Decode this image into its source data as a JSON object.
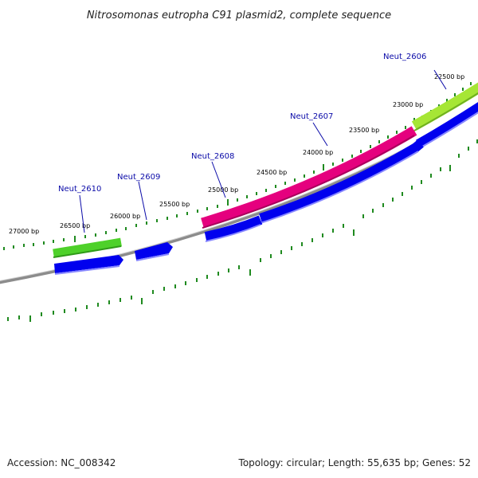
{
  "title": "Nitrosomonas eutropha C91 plasmid2, complete sequence",
  "footer": {
    "accession": "Accession: NC_008342",
    "summary": "Topology: circular; Length: 55,635 bp; Genes: 52"
  },
  "ticks": [
    "22500 bp",
    "23000 bp",
    "23500 bp",
    "24000 bp",
    "24500 bp",
    "25000 bp",
    "25500 bp",
    "26000 bp",
    "26500 bp",
    "27000 bp"
  ],
  "genes": [
    "Neut_2606",
    "Neut_2607",
    "Neut_2608",
    "Neut_2609",
    "Neut_2610"
  ],
  "colors": {
    "backbone": "#808080",
    "cds_blue": "#0000ee",
    "pink_feature": "#e5007e",
    "lime_feature": "#a6e635",
    "green_feature": "#4ed12a",
    "tick": "#1f8a1f",
    "gene_label": "#0a0aa8"
  }
}
